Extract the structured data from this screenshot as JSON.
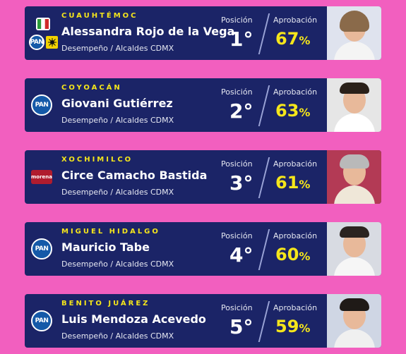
{
  "cards": [
    {
      "borough": "CUAUHTÉMOC",
      "name": "Alessandra Rojo de la Vega",
      "subtitle": "Desempeño / Alcaldes CDMX",
      "position_label": "Posición",
      "position": "1°",
      "approval_label": "Aprobación",
      "approval": "67",
      "percent": "%",
      "parties": [
        "PRI",
        "PAN",
        "PRD"
      ],
      "photo_bg": "#dfe3ee",
      "hair_color": "#8a6a4a"
    },
    {
      "borough": "COYOACÁN",
      "name": "Giovani Gutiérrez",
      "subtitle": "Desempeño / Alcaldes CDMX",
      "position_label": "Posición",
      "position": "2°",
      "approval_label": "Aprobación",
      "approval": "63",
      "percent": "%",
      "parties": [
        "PAN"
      ],
      "photo_bg": "#e6e6e6",
      "hair_color": "#2a2019"
    },
    {
      "borough": "XOCHIMILCO",
      "name": "Circe Camacho Bastida",
      "subtitle": "Desempeño / Alcaldes CDMX",
      "position_label": "Posición",
      "position": "3°",
      "approval_label": "Aprobación",
      "approval": "61",
      "percent": "%",
      "parties": [
        "morena"
      ],
      "photo_bg": "#b33a55",
      "hair_color": "#b9b9b9"
    },
    {
      "borough": "MIGUEL HIDALGO",
      "name": "Mauricio Tabe",
      "subtitle": "Desempeño / Alcaldes CDMX",
      "position_label": "Posición",
      "position": "4°",
      "approval_label": "Aprobación",
      "approval": "60",
      "percent": "%",
      "parties": [
        "PAN"
      ],
      "photo_bg": "#d8dbe2",
      "hair_color": "#2b2420"
    },
    {
      "borough": "BENITO JUÁREZ",
      "name": "Luis Mendoza Acevedo",
      "subtitle": "Desempeño / Alcaldes CDMX",
      "position_label": "Posición",
      "position": "5°",
      "approval_label": "Aprobación",
      "approval": "59",
      "percent": "%",
      "parties": [
        "PAN"
      ],
      "photo_bg": "#cfd6e4",
      "hair_color": "#1f1a17"
    }
  ],
  "colors": {
    "background": "#f25fbf",
    "card": "#1b2467",
    "accent_yellow": "#f5e61b",
    "pan_blue": "#1459a8",
    "morena_red": "#b01c2e"
  }
}
